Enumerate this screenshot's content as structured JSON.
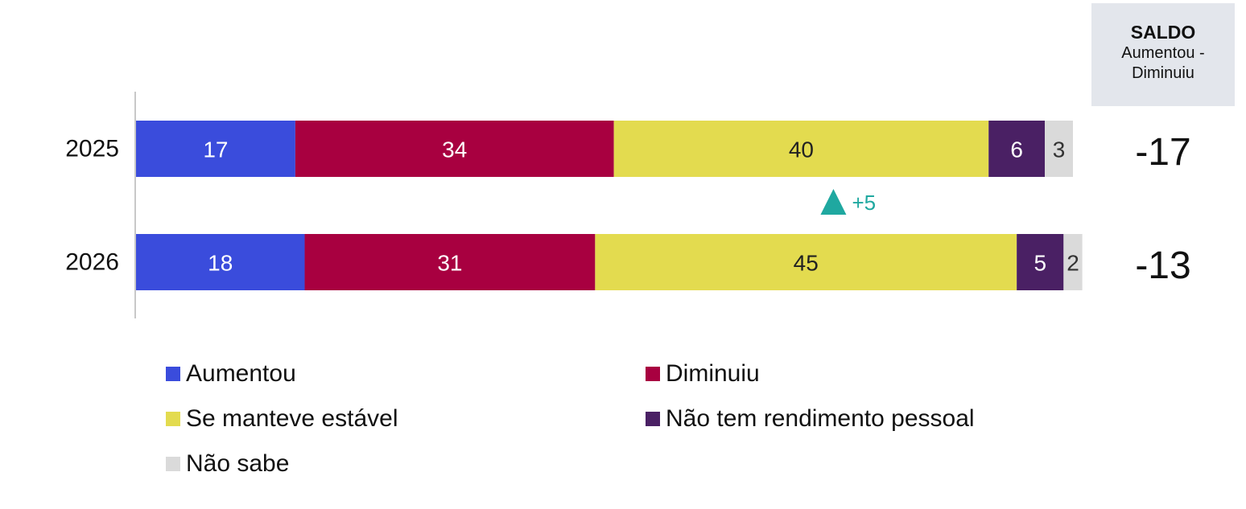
{
  "chart_data": {
    "type": "bar",
    "orientation": "horizontal",
    "stacked": true,
    "categories": [
      "2025",
      "2026"
    ],
    "series": [
      {
        "name": "Aumentou",
        "values": [
          17,
          18
        ],
        "color": "#3a4cdc",
        "label_color": "#ffffff"
      },
      {
        "name": "Diminuiu",
        "values": [
          34,
          31
        ],
        "color": "#a80040",
        "label_color": "#ffffff"
      },
      {
        "name": "Se manteve estável",
        "values": [
          40,
          45
        ],
        "color": "#e3db4f",
        "label_color": "#222222"
      },
      {
        "name": "Não tem rendimento pessoal",
        "values": [
          6,
          5
        ],
        "color": "#4a2064",
        "label_color": "#ffffff"
      },
      {
        "name": "Não sabe",
        "values": [
          3,
          2
        ],
        "color": "#dadada",
        "label_color": "#333333"
      }
    ],
    "xlim": [
      0,
      100
    ],
    "grid": false,
    "legend_position": "bottom",
    "saldo": {
      "title": "SALDO",
      "subtitle": "Aumentou - Diminuiu",
      "values": [
        "-17",
        "-13"
      ]
    },
    "annotation": {
      "text": "+5",
      "icon": "triangle-up-icon",
      "color": "#1fa8a0",
      "series": "Se manteve estável"
    }
  }
}
